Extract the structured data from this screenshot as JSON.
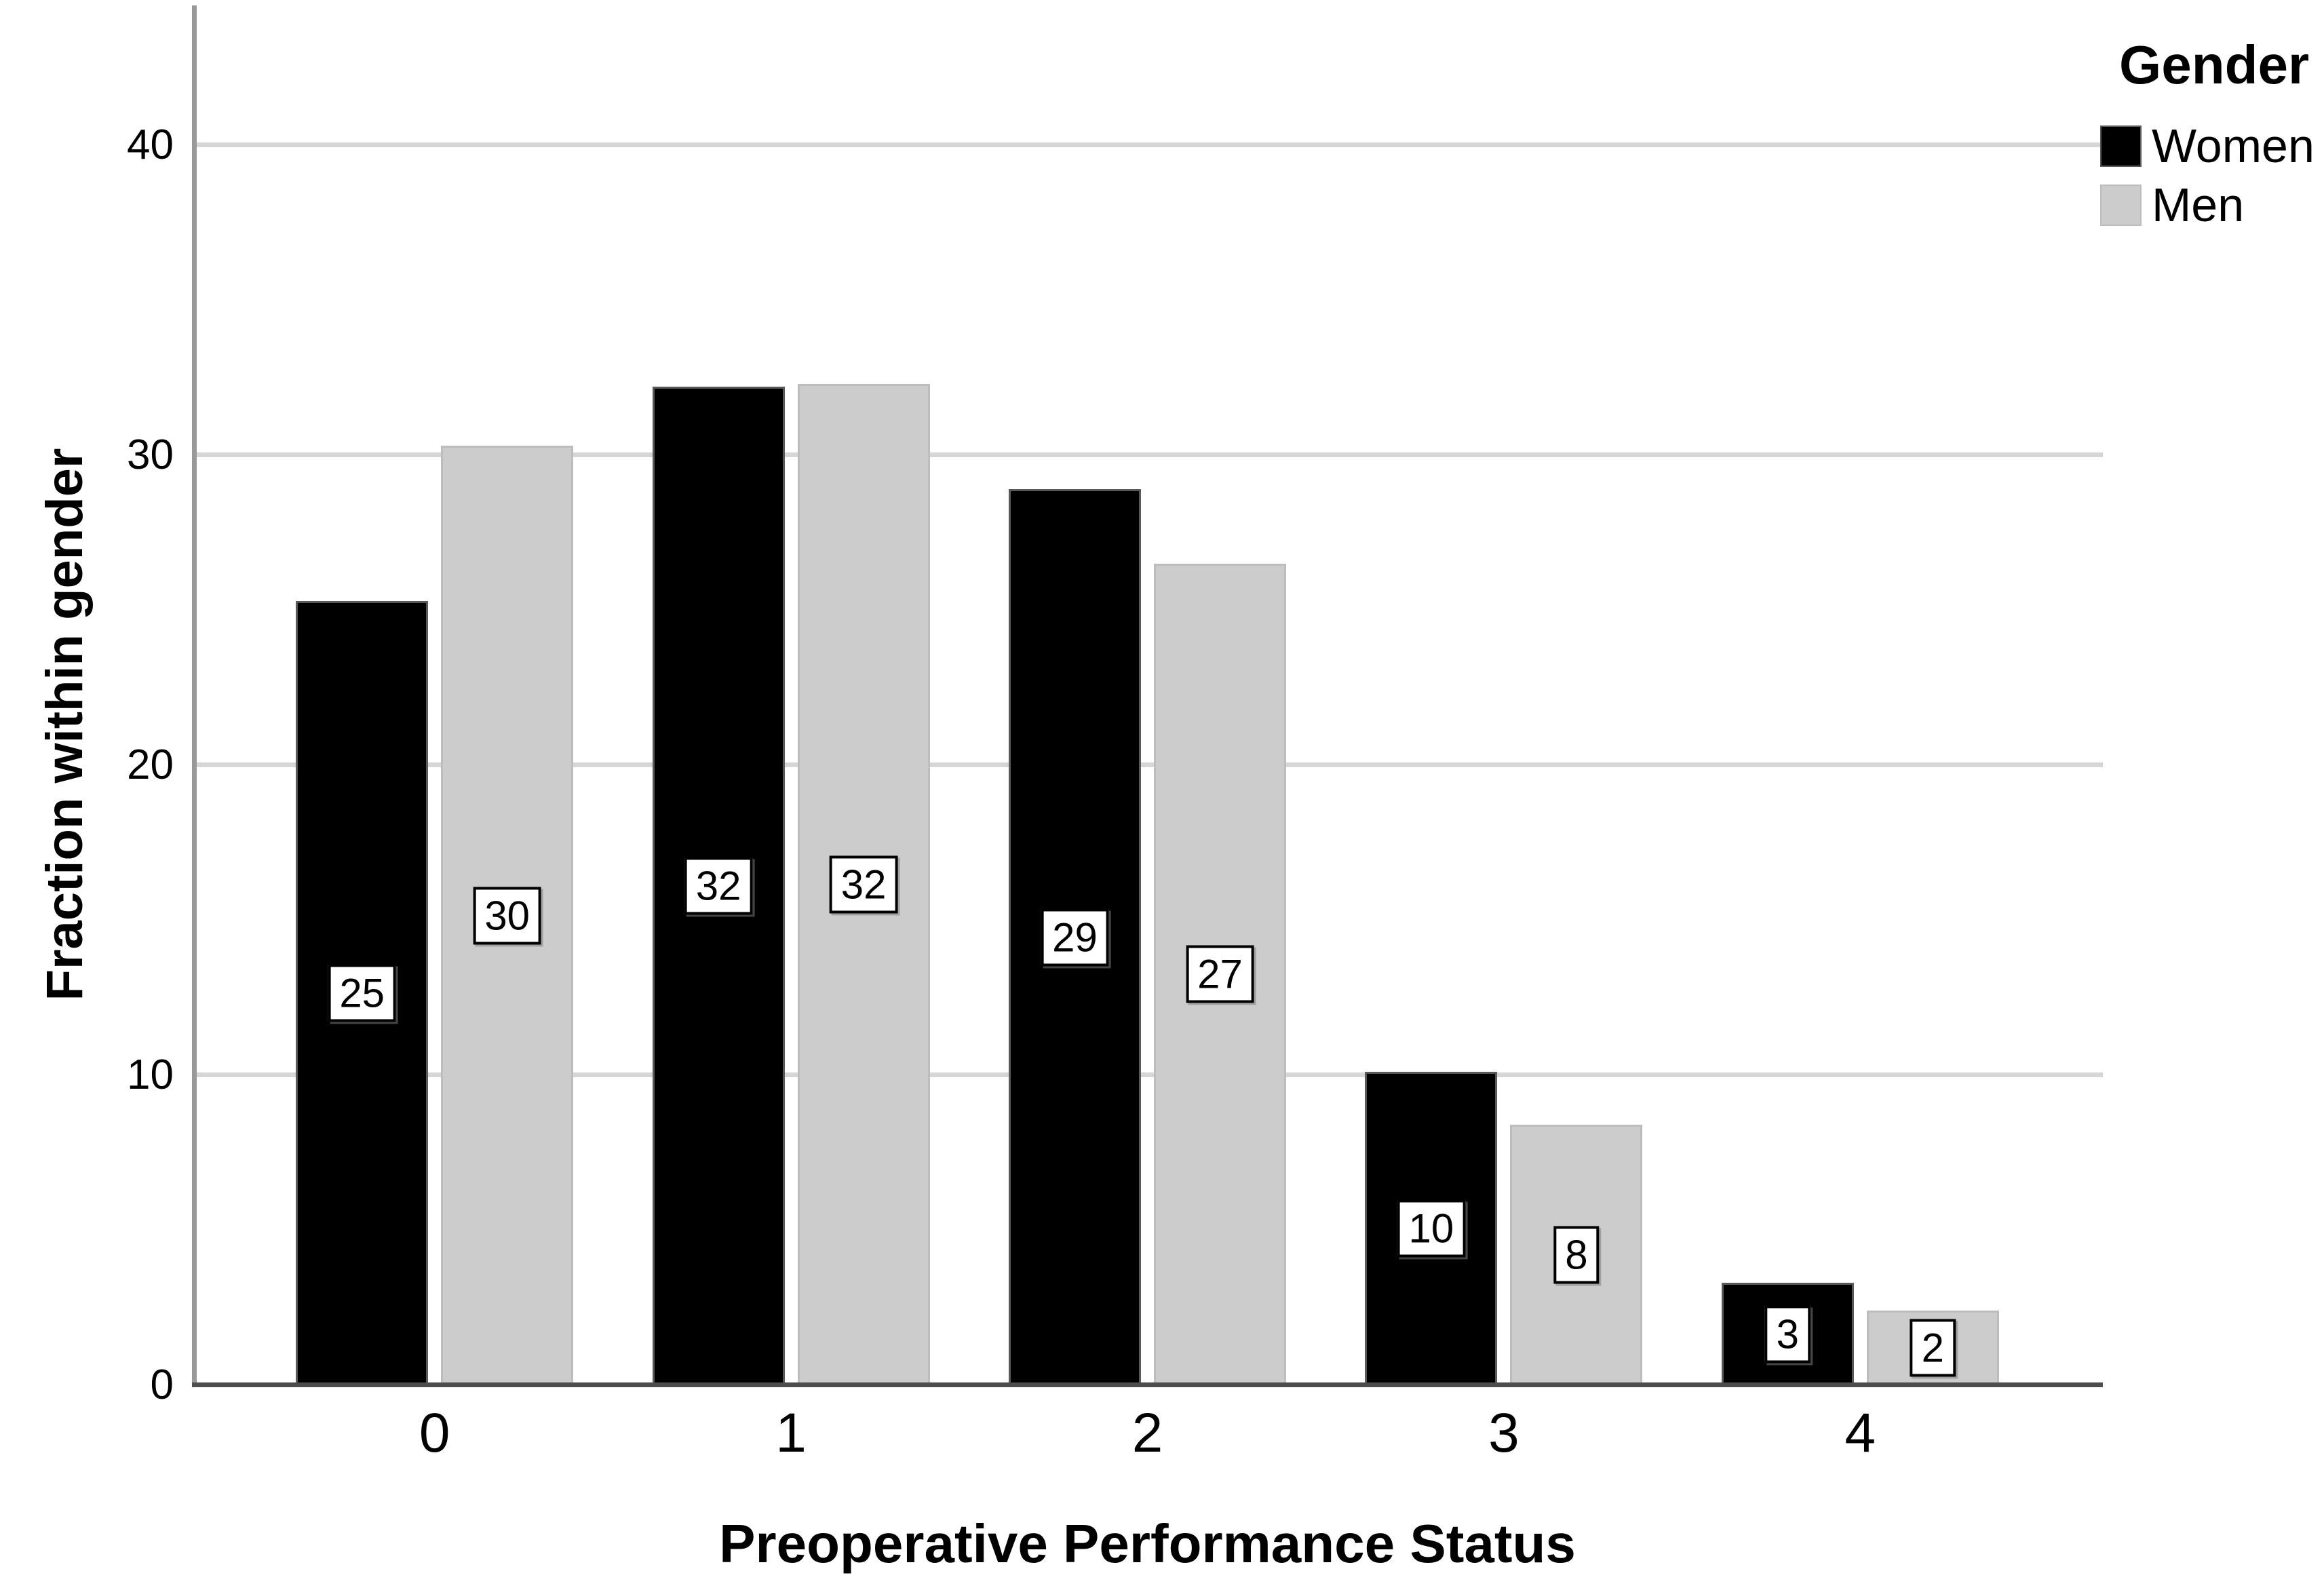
{
  "chart_data": {
    "type": "bar",
    "title": "",
    "xlabel": "Preoperative Performance Status",
    "ylabel": "Fraction within gender",
    "categories": [
      "0",
      "1",
      "2",
      "3",
      "4"
    ],
    "series": [
      {
        "name": "Women",
        "color": "#000000",
        "border_color": "#595959",
        "values": [
          25.3,
          32.2,
          28.9,
          10.1,
          3.3
        ],
        "bar_labels": [
          "25",
          "32",
          "29",
          "10",
          "3"
        ]
      },
      {
        "name": "Men",
        "color": "#cccccc",
        "border_color": "#bdbdbd",
        "values": [
          30.3,
          32.3,
          26.5,
          8.4,
          2.4
        ],
        "bar_labels": [
          "30",
          "32",
          "27",
          "8",
          "2"
        ]
      }
    ],
    "ylim": [
      0,
      44.5
    ],
    "yticks": [
      0,
      10,
      20,
      30,
      40
    ],
    "grid": true,
    "legend": {
      "title": "Gender",
      "entries": [
        "Women",
        "Men"
      ],
      "position": "top-right"
    },
    "colors": {
      "gridline": "#d6d6d6",
      "y_axis_line": "#999999",
      "x_axis_line": "#4d4d4d",
      "label_box_bg": "#ffffff",
      "label_box_border": "#000000"
    }
  }
}
